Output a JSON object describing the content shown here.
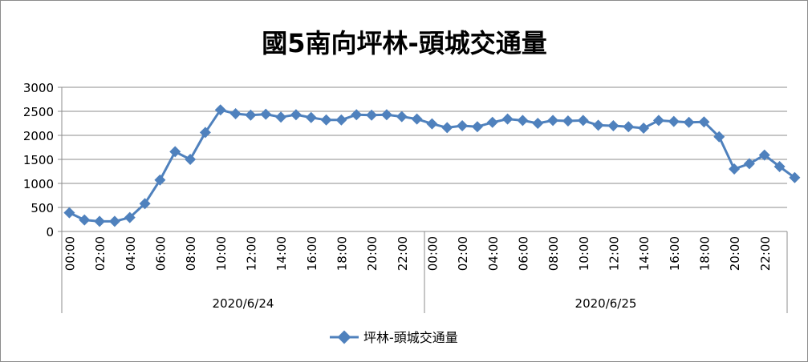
{
  "chart_data": {
    "type": "line",
    "title": "國5南向坪林-頭城交通量",
    "ylim": [
      0,
      3000
    ],
    "y_ticks": [
      "0",
      "500",
      "1000",
      "1500",
      "2000",
      "2500",
      "3000"
    ],
    "grid": "horizontal",
    "legend_position": "bottom",
    "line_color": "#4f81bd",
    "x_tick_labels": [
      "00:00",
      "02:00",
      "04:00",
      "06:00",
      "08:00",
      "10:00",
      "12:00",
      "14:00",
      "16:00",
      "18:00",
      "20:00",
      "22:00"
    ],
    "groups": [
      {
        "label": "2020/6/24",
        "hours": 24
      },
      {
        "label": "2020/6/25",
        "hours": 24
      }
    ],
    "series": [
      {
        "name": "坪林-頭城交通量",
        "values": [
          390,
          240,
          210,
          210,
          290,
          580,
          1070,
          1660,
          1500,
          2060,
          2530,
          2450,
          2420,
          2440,
          2380,
          2430,
          2370,
          2320,
          2320,
          2430,
          2420,
          2430,
          2390,
          2340,
          2240,
          2160,
          2200,
          2180,
          2270,
          2340,
          2310,
          2250,
          2310,
          2300,
          2310,
          2210,
          2200,
          2180,
          2150,
          2310,
          2290,
          2270,
          2280,
          1970,
          1300,
          1410,
          1590,
          1350,
          1120
        ]
      }
    ]
  }
}
